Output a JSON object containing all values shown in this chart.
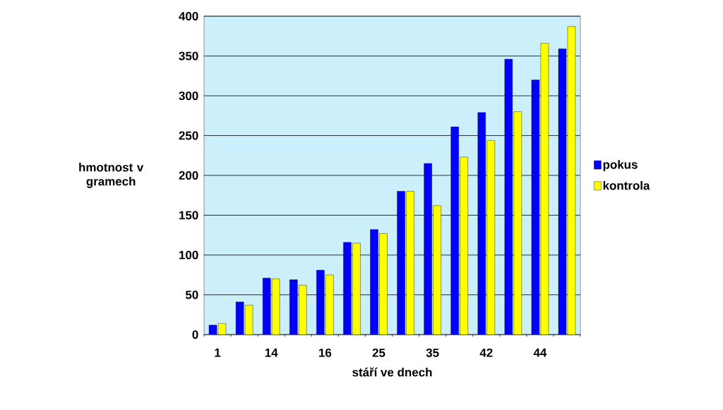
{
  "chart_data": {
    "type": "bar",
    "xlabel": "stáří ve dnech",
    "ylabel": "hmotnost v gramech",
    "categories": [
      "1",
      null,
      "14",
      null,
      "16",
      null,
      "25",
      null,
      "35",
      null,
      "42",
      null,
      "44",
      null
    ],
    "series": [
      {
        "name": "pokus",
        "color": "#0000ff",
        "values": [
          12,
          41,
          71,
          69,
          81,
          116,
          132,
          180,
          215,
          261,
          279,
          346,
          320,
          359
        ]
      },
      {
        "name": "kontrola",
        "color": "#ffff00",
        "values": [
          14,
          37,
          70,
          62,
          75,
          115,
          127,
          180,
          162,
          223,
          244,
          280,
          366,
          387
        ]
      }
    ],
    "ylim": [
      0,
      400
    ],
    "yticks": [
      0,
      50,
      100,
      150,
      200,
      250,
      300,
      350,
      400
    ],
    "grid": "y",
    "legend": "right"
  }
}
